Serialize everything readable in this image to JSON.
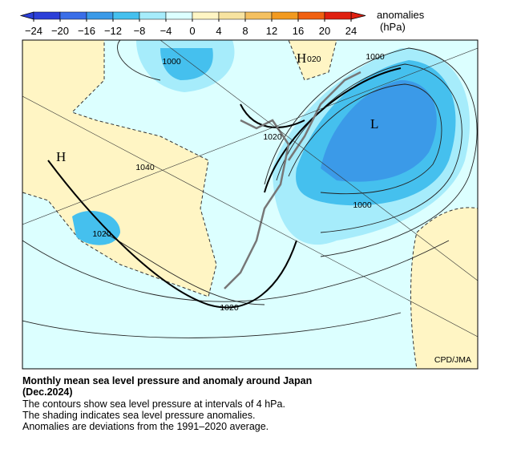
{
  "colorbar": {
    "ticks": [
      "−24",
      "−20",
      "−16",
      "−12",
      "−8",
      "−4",
      "0",
      "4",
      "8",
      "12",
      "16",
      "20",
      "24"
    ],
    "label": [
      "anomalies",
      "(hPa)"
    ]
  },
  "map": {
    "labels": [
      {
        "text": "1000"
      },
      {
        "text": "H"
      },
      {
        "text": "020"
      },
      {
        "text": "1000"
      },
      {
        "text": "L"
      },
      {
        "text": "1020"
      },
      {
        "text": "H"
      },
      {
        "text": "1040"
      },
      {
        "text": "1000"
      },
      {
        "text": "1020"
      },
      {
        "text": "1020"
      }
    ],
    "credit": "CPD/JMA"
  },
  "caption": {
    "title": [
      "Monthly mean sea level pressure and anomaly around Japan",
      "(Dec.2024)"
    ],
    "lines": [
      "The contours show sea level pressure at intervals of 4 hPa.",
      "The shading indicates sea level pressure anomalies.",
      "Anomalies are deviations from the 1991–2020 average."
    ]
  }
}
